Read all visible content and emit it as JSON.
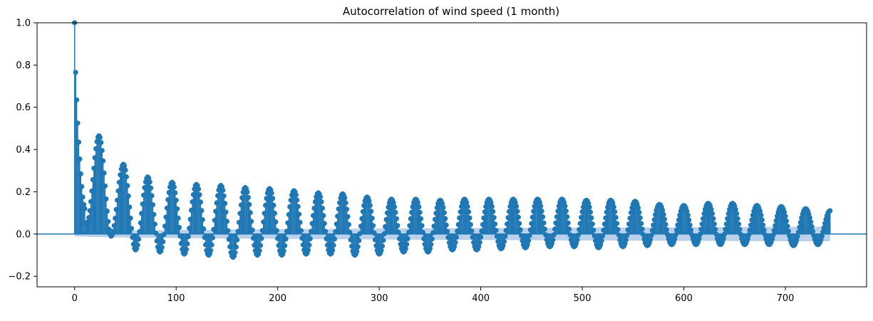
{
  "chart_data": {
    "type": "stem",
    "title": "Autocorrelation of wind speed (1 month)",
    "xlabel": "",
    "ylabel": "",
    "xlim": [
      -37,
      780
    ],
    "ylim": [
      -0.25,
      1.0
    ],
    "xticks": [
      0,
      100,
      200,
      300,
      400,
      500,
      600,
      700
    ],
    "xtick_labels": [
      "0",
      "100",
      "200",
      "300",
      "400",
      "500",
      "600",
      "700"
    ],
    "yticks": [
      -0.2,
      0.0,
      0.2,
      0.4,
      0.6,
      0.8,
      1.0
    ],
    "ytick_labels": [
      "−0.2",
      "0.0",
      "0.2",
      "0.4",
      "0.6",
      "0.8",
      "1.0"
    ],
    "max_lag": 744,
    "daily_period": 24,
    "lag0_value": 1.0,
    "early_lags": [
      {
        "lag": 1,
        "acf": 0.765
      },
      {
        "lag": 2,
        "acf": 0.635
      },
      {
        "lag": 3,
        "acf": 0.525
      },
      {
        "lag": 4,
        "acf": 0.435
      },
      {
        "lag": 5,
        "acf": 0.355
      },
      {
        "lag": 6,
        "acf": 0.285
      },
      {
        "lag": 7,
        "acf": 0.225
      },
      {
        "lag": 8,
        "acf": 0.175
      },
      {
        "lag": 9,
        "acf": 0.14
      },
      {
        "lag": 10,
        "acf": 0.12
      }
    ],
    "cycles": [
      {
        "day": 1,
        "peak": 0.465,
        "trough": 0.05
      },
      {
        "day": 2,
        "peak": 0.33,
        "trough": -0.01
      },
      {
        "day": 3,
        "peak": 0.27,
        "trough": -0.075
      },
      {
        "day": 4,
        "peak": 0.245,
        "trough": -0.085
      },
      {
        "day": 5,
        "peak": 0.235,
        "trough": -0.095
      },
      {
        "day": 6,
        "peak": 0.23,
        "trough": -0.1
      },
      {
        "day": 7,
        "peak": 0.22,
        "trough": -0.11
      },
      {
        "day": 8,
        "peak": 0.215,
        "trough": -0.1
      },
      {
        "day": 9,
        "peak": 0.205,
        "trough": -0.1
      },
      {
        "day": 10,
        "peak": 0.195,
        "trough": -0.095
      },
      {
        "day": 11,
        "peak": 0.19,
        "trough": -0.095
      },
      {
        "day": 12,
        "peak": 0.175,
        "trough": -0.1
      },
      {
        "day": 13,
        "peak": 0.165,
        "trough": -0.095
      },
      {
        "day": 14,
        "peak": 0.165,
        "trough": -0.085
      },
      {
        "day": 15,
        "peak": 0.16,
        "trough": -0.085
      },
      {
        "day": 16,
        "peak": 0.165,
        "trough": -0.075
      },
      {
        "day": 17,
        "peak": 0.165,
        "trough": -0.075
      },
      {
        "day": 18,
        "peak": 0.165,
        "trough": -0.07
      },
      {
        "day": 19,
        "peak": 0.165,
        "trough": -0.065
      },
      {
        "day": 20,
        "peak": 0.165,
        "trough": -0.06
      },
      {
        "day": 21,
        "peak": 0.16,
        "trough": -0.06
      },
      {
        "day": 22,
        "peak": 0.16,
        "trough": -0.065
      },
      {
        "day": 23,
        "peak": 0.155,
        "trough": -0.06
      },
      {
        "day": 24,
        "peak": 0.14,
        "trough": -0.055
      },
      {
        "day": 25,
        "peak": 0.135,
        "trough": -0.05
      },
      {
        "day": 26,
        "peak": 0.145,
        "trough": -0.05
      },
      {
        "day": 27,
        "peak": 0.145,
        "trough": -0.05
      },
      {
        "day": 28,
        "peak": 0.135,
        "trough": -0.05
      },
      {
        "day": 29,
        "peak": 0.13,
        "trough": -0.05
      },
      {
        "day": 30,
        "peak": 0.12,
        "trough": -0.055
      },
      {
        "day": 31,
        "peak": 0.11,
        "trough": -0.05
      }
    ],
    "confidence_band": {
      "start": 0.01,
      "end": 0.035
    },
    "colors": {
      "stem": "#1f77b4",
      "marker": "#1f77b4",
      "band": "#aec9e8",
      "zero_line": "#1f77b4",
      "axes": "#000000"
    },
    "grid": false
  }
}
